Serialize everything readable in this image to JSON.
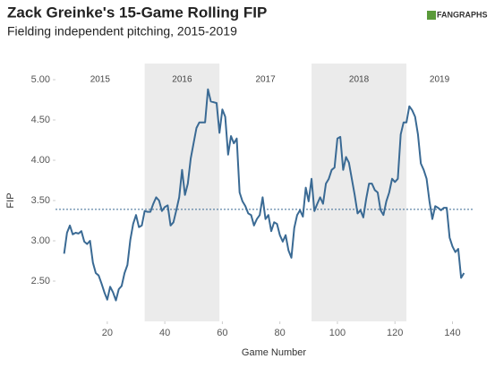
{
  "chart_data": {
    "type": "line",
    "title": "Zack Greinke's 15-Game Rolling FIP",
    "subtitle": "Fielding independent pitching, 2015-2019",
    "logo": "FANGRAPHS",
    "x_label": "Game Number",
    "y_label": "FIP",
    "xlim": [
      2,
      147
    ],
    "ylim": [
      2.0,
      5.2
    ],
    "xticks": [
      20,
      40,
      60,
      80,
      100,
      120,
      140
    ],
    "yticks": [
      {
        "value": 2.5,
        "label": "2.50"
      },
      {
        "value": 3,
        "label": "3.00"
      },
      {
        "value": 3.5,
        "label": "3.50"
      },
      {
        "value": 4,
        "label": "4.00"
      },
      {
        "value": 4.5,
        "label": "4.50"
      },
      {
        "value": 5,
        "label": "5.00"
      }
    ],
    "reference_line": 3.39,
    "band_color": "#ebebeb",
    "seasons": [
      {
        "label": "2015",
        "start": 2,
        "end": 33,
        "shaded": false
      },
      {
        "label": "2016",
        "start": 33,
        "end": 59,
        "shaded": true
      },
      {
        "label": "2017",
        "start": 59,
        "end": 91,
        "shaded": false
      },
      {
        "label": "2018",
        "start": 91,
        "end": 124,
        "shaded": true
      },
      {
        "label": "2019",
        "start": 124,
        "end": 147,
        "shaded": false
      }
    ],
    "x": [
      5,
      6,
      7,
      8,
      9,
      10,
      11,
      12,
      13,
      14,
      15,
      16,
      17,
      18,
      19,
      20,
      21,
      22,
      23,
      24,
      25,
      26,
      27,
      28,
      29,
      30,
      31,
      32,
      33,
      34,
      35,
      36,
      37,
      38,
      39,
      40,
      41,
      42,
      43,
      44,
      45,
      46,
      47,
      48,
      49,
      50,
      51,
      52,
      53,
      54,
      55,
      56,
      57,
      58,
      59,
      60,
      61,
      62,
      63,
      64,
      65,
      66,
      67,
      68,
      69,
      70,
      71,
      72,
      73,
      74,
      75,
      76,
      77,
      78,
      79,
      80,
      81,
      82,
      83,
      84,
      85,
      86,
      87,
      88,
      89,
      90,
      91,
      92,
      93,
      94,
      95,
      96,
      97,
      98,
      99,
      100,
      101,
      102,
      103,
      104,
      105,
      106,
      107,
      108,
      109,
      110,
      111,
      112,
      113,
      114,
      115,
      116,
      117,
      118,
      119,
      120,
      121,
      122,
      123,
      124,
      125,
      126,
      127,
      128,
      129,
      130,
      131,
      132,
      133,
      134,
      135,
      136,
      137,
      138,
      139,
      140,
      141,
      142,
      143,
      144
    ],
    "series": [
      {
        "name": "FIP",
        "color": "#3a6a94",
        "values": [
          2.84,
          3.1,
          3.19,
          3.08,
          3.1,
          3.09,
          3.12,
          2.99,
          2.96,
          3.0,
          2.73,
          2.6,
          2.57,
          2.47,
          2.36,
          2.27,
          2.43,
          2.36,
          2.26,
          2.4,
          2.44,
          2.6,
          2.7,
          3.01,
          3.21,
          3.32,
          3.17,
          3.19,
          3.37,
          3.36,
          3.36,
          3.46,
          3.54,
          3.5,
          3.37,
          3.42,
          3.44,
          3.19,
          3.23,
          3.38,
          3.54,
          3.88,
          3.57,
          3.71,
          4.02,
          4.21,
          4.4,
          4.47,
          4.47,
          4.47,
          4.88,
          4.73,
          4.72,
          4.71,
          4.34,
          4.63,
          4.54,
          4.07,
          4.3,
          4.21,
          4.27,
          3.6,
          3.49,
          3.43,
          3.34,
          3.32,
          3.19,
          3.27,
          3.32,
          3.54,
          3.27,
          3.32,
          3.12,
          3.23,
          3.21,
          3.07,
          2.99,
          3.07,
          2.88,
          2.79,
          3.16,
          3.32,
          3.38,
          3.3,
          3.66,
          3.49,
          3.77,
          3.37,
          3.46,
          3.54,
          3.46,
          3.71,
          3.77,
          3.88,
          3.91,
          4.27,
          4.29,
          3.88,
          4.04,
          3.97,
          3.77,
          3.57,
          3.34,
          3.38,
          3.29,
          3.52,
          3.71,
          3.71,
          3.63,
          3.6,
          3.38,
          3.32,
          3.49,
          3.6,
          3.77,
          3.73,
          3.77,
          4.32,
          4.47,
          4.47,
          4.67,
          4.62,
          4.54,
          4.32,
          3.96,
          3.88,
          3.77,
          3.49,
          3.27,
          3.43,
          3.41,
          3.38,
          3.41,
          3.41,
          3.04,
          2.93,
          2.86,
          2.9,
          2.54,
          2.6
        ]
      }
    ]
  }
}
